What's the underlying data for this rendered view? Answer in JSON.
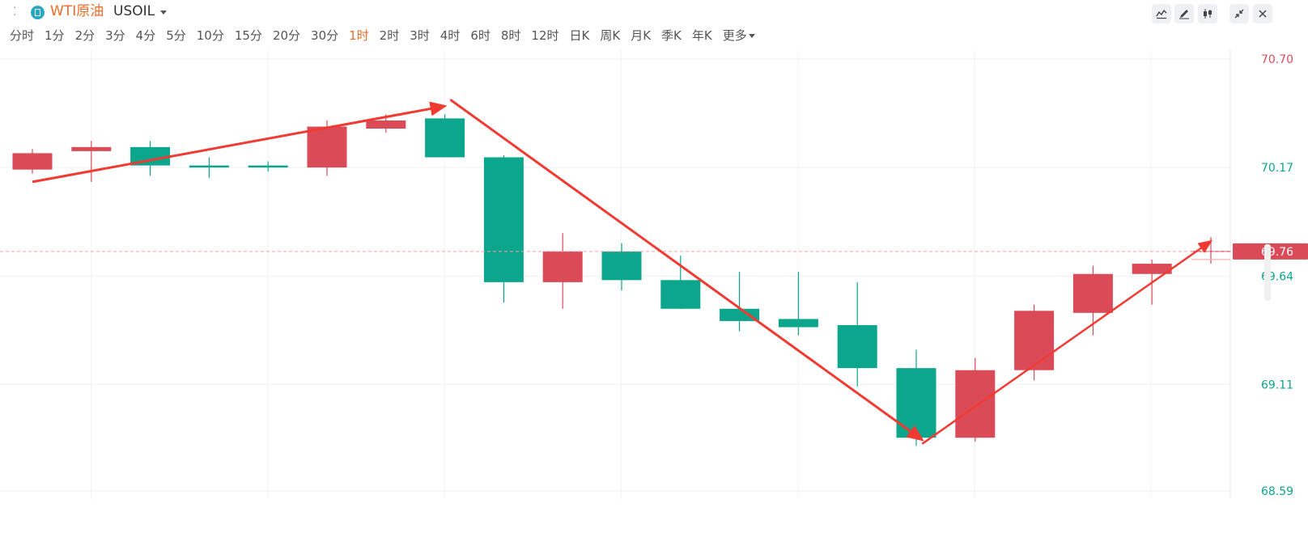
{
  "header": {
    "symbol_name": "WTI原油",
    "symbol_code": "USOIL",
    "grip_icon": "drag-handle-icon"
  },
  "toolbar": {
    "icons": [
      "indicator-icon",
      "draw-pen-icon",
      "candle-style-icon",
      "collapse-icon",
      "close-icon"
    ]
  },
  "periods": [
    {
      "label": "分时",
      "active": false
    },
    {
      "label": "1分",
      "active": false
    },
    {
      "label": "2分",
      "active": false
    },
    {
      "label": "3分",
      "active": false
    },
    {
      "label": "4分",
      "active": false
    },
    {
      "label": "5分",
      "active": false
    },
    {
      "label": "10分",
      "active": false
    },
    {
      "label": "15分",
      "active": false
    },
    {
      "label": "20分",
      "active": false
    },
    {
      "label": "30分",
      "active": false
    },
    {
      "label": "1时",
      "active": true
    },
    {
      "label": "2时",
      "active": false
    },
    {
      "label": "3时",
      "active": false
    },
    {
      "label": "4时",
      "active": false
    },
    {
      "label": "6时",
      "active": false
    },
    {
      "label": "8时",
      "active": false
    },
    {
      "label": "12时",
      "active": false
    },
    {
      "label": "日K",
      "active": false
    },
    {
      "label": "周K",
      "active": false
    },
    {
      "label": "月K",
      "active": false
    },
    {
      "label": "季K",
      "active": false
    },
    {
      "label": "年K",
      "active": false
    }
  ],
  "more_label": "更多",
  "colors": {
    "up": "#db4a57",
    "down": "#0ba68b",
    "accent": "#f06a25",
    "arrow": "#f03a32",
    "grid": "#f1f1f1"
  },
  "chart_data": {
    "type": "candlestick",
    "ylim": [
      68.59,
      70.7
    ],
    "y_ticks": [
      "70.70",
      "70.17",
      "69.64",
      "69.11",
      "68.59"
    ],
    "current_price": "69.76",
    "grid": true,
    "candles": [
      {
        "open": 70.16,
        "close": 70.24,
        "high": 70.26,
        "low": 70.14
      },
      {
        "open": 70.25,
        "close": 70.27,
        "high": 70.3,
        "low": 70.1
      },
      {
        "open": 70.27,
        "close": 70.18,
        "high": 70.3,
        "low": 70.13
      },
      {
        "open": 70.18,
        "close": 70.17,
        "high": 70.22,
        "low": 70.12
      },
      {
        "open": 70.18,
        "close": 70.17,
        "high": 70.2,
        "low": 70.15
      },
      {
        "open": 70.17,
        "close": 70.37,
        "high": 70.4,
        "low": 70.13
      },
      {
        "open": 70.36,
        "close": 70.4,
        "high": 70.43,
        "low": 70.34
      },
      {
        "open": 70.41,
        "close": 70.22,
        "high": 70.43,
        "low": 70.22
      },
      {
        "open": 70.22,
        "close": 69.61,
        "high": 70.23,
        "low": 69.51
      },
      {
        "open": 69.61,
        "close": 69.76,
        "high": 69.85,
        "low": 69.48
      },
      {
        "open": 69.76,
        "close": 69.62,
        "high": 69.8,
        "low": 69.57
      },
      {
        "open": 69.62,
        "close": 69.48,
        "high": 69.74,
        "low": 69.48
      },
      {
        "open": 69.48,
        "close": 69.42,
        "high": 69.66,
        "low": 69.37
      },
      {
        "open": 69.43,
        "close": 69.39,
        "high": 69.66,
        "low": 69.35
      },
      {
        "open": 69.4,
        "close": 69.19,
        "high": 69.61,
        "low": 69.1
      },
      {
        "open": 69.19,
        "close": 68.85,
        "high": 69.28,
        "low": 68.81
      },
      {
        "open": 68.85,
        "close": 69.18,
        "high": 69.24,
        "low": 68.83
      },
      {
        "open": 69.18,
        "close": 69.47,
        "high": 69.5,
        "low": 69.13
      },
      {
        "open": 69.46,
        "close": 69.65,
        "high": 69.69,
        "low": 69.35
      },
      {
        "open": 69.65,
        "close": 69.7,
        "high": 69.72,
        "low": 69.5
      },
      {
        "open": 69.76,
        "close": 69.76,
        "high": 69.83,
        "low": 69.7
      }
    ],
    "trend_lines": [
      {
        "from_candle": 0,
        "from_value": 70.1,
        "to_candle": 7,
        "to_value": 70.47,
        "arrow": true
      },
      {
        "from_candle": 7.1,
        "from_value": 70.5,
        "to_candle": 15.1,
        "to_value": 68.84,
        "arrow": true
      },
      {
        "from_candle": 15.1,
        "from_value": 68.82,
        "to_candle": 20,
        "to_value": 69.81,
        "arrow": true
      }
    ]
  }
}
